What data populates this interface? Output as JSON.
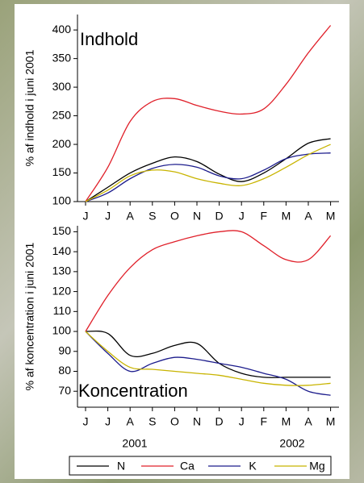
{
  "chart_data": [
    {
      "type": "line",
      "annotation": "Indhold",
      "y_label": "% af indhold i juni 2001",
      "categories": [
        "J",
        "J",
        "A",
        "S",
        "O",
        "N",
        "D",
        "J",
        "F",
        "M",
        "A",
        "M"
      ],
      "ylim": [
        100,
        427
      ],
      "yticks": [
        100,
        150,
        200,
        250,
        300,
        350,
        400
      ],
      "series": [
        {
          "name": "N",
          "color": "#000000",
          "values": [
            100,
            125,
            150,
            167,
            178,
            170,
            148,
            135,
            150,
            175,
            202,
            210
          ]
        },
        {
          "name": "Ca",
          "color": "#e0202a",
          "values": [
            100,
            160,
            240,
            275,
            280,
            268,
            258,
            253,
            262,
            305,
            360,
            408
          ]
        },
        {
          "name": "K",
          "color": "#1c1c8c",
          "values": [
            100,
            115,
            140,
            158,
            165,
            160,
            145,
            140,
            155,
            175,
            183,
            185
          ]
        },
        {
          "name": "Mg",
          "color": "#c8b400",
          "values": [
            100,
            120,
            145,
            155,
            152,
            140,
            132,
            128,
            140,
            160,
            182,
            200
          ]
        }
      ]
    },
    {
      "type": "line",
      "annotation": "Koncentration",
      "y_label": "% af koncentration i juni 2001",
      "categories": [
        "J",
        "J",
        "A",
        "S",
        "O",
        "N",
        "D",
        "J",
        "F",
        "M",
        "A",
        "M"
      ],
      "year_labels": [
        "2001",
        "2002"
      ],
      "ylim": [
        62,
        153
      ],
      "yticks": [
        70,
        80,
        90,
        100,
        110,
        120,
        130,
        140,
        150
      ],
      "series": [
        {
          "name": "N",
          "color": "#000000",
          "values": [
            100,
            99,
            88,
            89,
            93,
            94,
            84,
            79,
            77,
            77,
            77,
            77
          ]
        },
        {
          "name": "Ca",
          "color": "#e0202a",
          "values": [
            100,
            118,
            132,
            141,
            145,
            148,
            150,
            150,
            143,
            136,
            136,
            148
          ]
        },
        {
          "name": "K",
          "color": "#1c1c8c",
          "values": [
            100,
            89,
            80,
            84,
            87,
            86,
            84,
            82,
            79,
            76,
            70,
            68
          ]
        },
        {
          "name": "Mg",
          "color": "#c8b400",
          "values": [
            100,
            90,
            82,
            81,
            80,
            79,
            78,
            76,
            74,
            73,
            73,
            74
          ]
        }
      ]
    }
  ]
}
